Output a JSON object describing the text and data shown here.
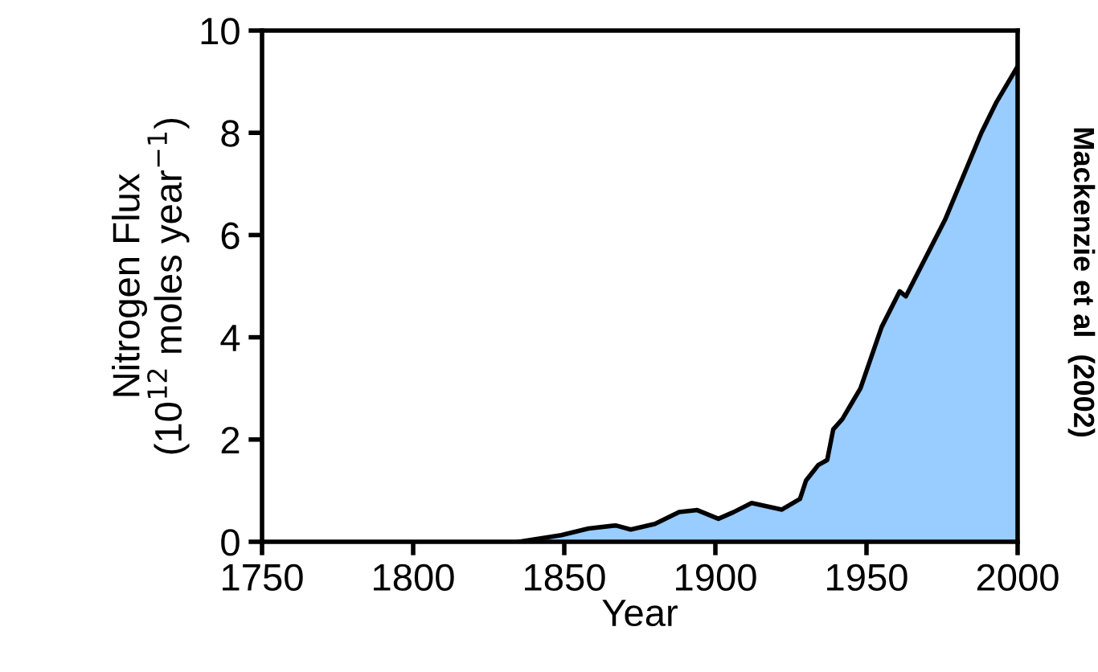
{
  "chart_data": {
    "type": "area",
    "xlabel": "Year",
    "ylabel": "Nitrogen Flux\n(10$^{12}$ moles year$^{−1}$)",
    "annotations": [
      "Mackenzie et al  (2002)"
    ],
    "series": [
      {
        "color": "#99ccff",
        "x": [
          1835,
          1849,
          1858,
          1867,
          1872,
          1880,
          1888,
          1894,
          1901,
          1906,
          1912,
          1922,
          1928,
          1930,
          1934,
          1937,
          1939,
          1942,
          1945,
          1948,
          1955,
          1961,
          1963,
          1976,
          1988,
          1993,
          2000
        ],
        "values": [
          0,
          0.13,
          0.26,
          0.32,
          0.24,
          0.35,
          0.58,
          0.62,
          0.45,
          0.58,
          0.76,
          0.63,
          0.84,
          1.2,
          1.5,
          1.6,
          2.2,
          2.4,
          2.7,
          3.0,
          4.2,
          4.9,
          4.8,
          6.3,
          8.0,
          8.6,
          9.3
        ]
      }
    ],
    "xlim": [
      1750,
      2000
    ],
    "ylim": [
      0,
      10
    ],
    "xticks": [
      1750,
      1800,
      1850,
      1900,
      1950,
      2000
    ],
    "yticks": [
      0,
      2,
      4,
      6,
      8,
      10
    ],
    "grid": false,
    "legend": false
  }
}
